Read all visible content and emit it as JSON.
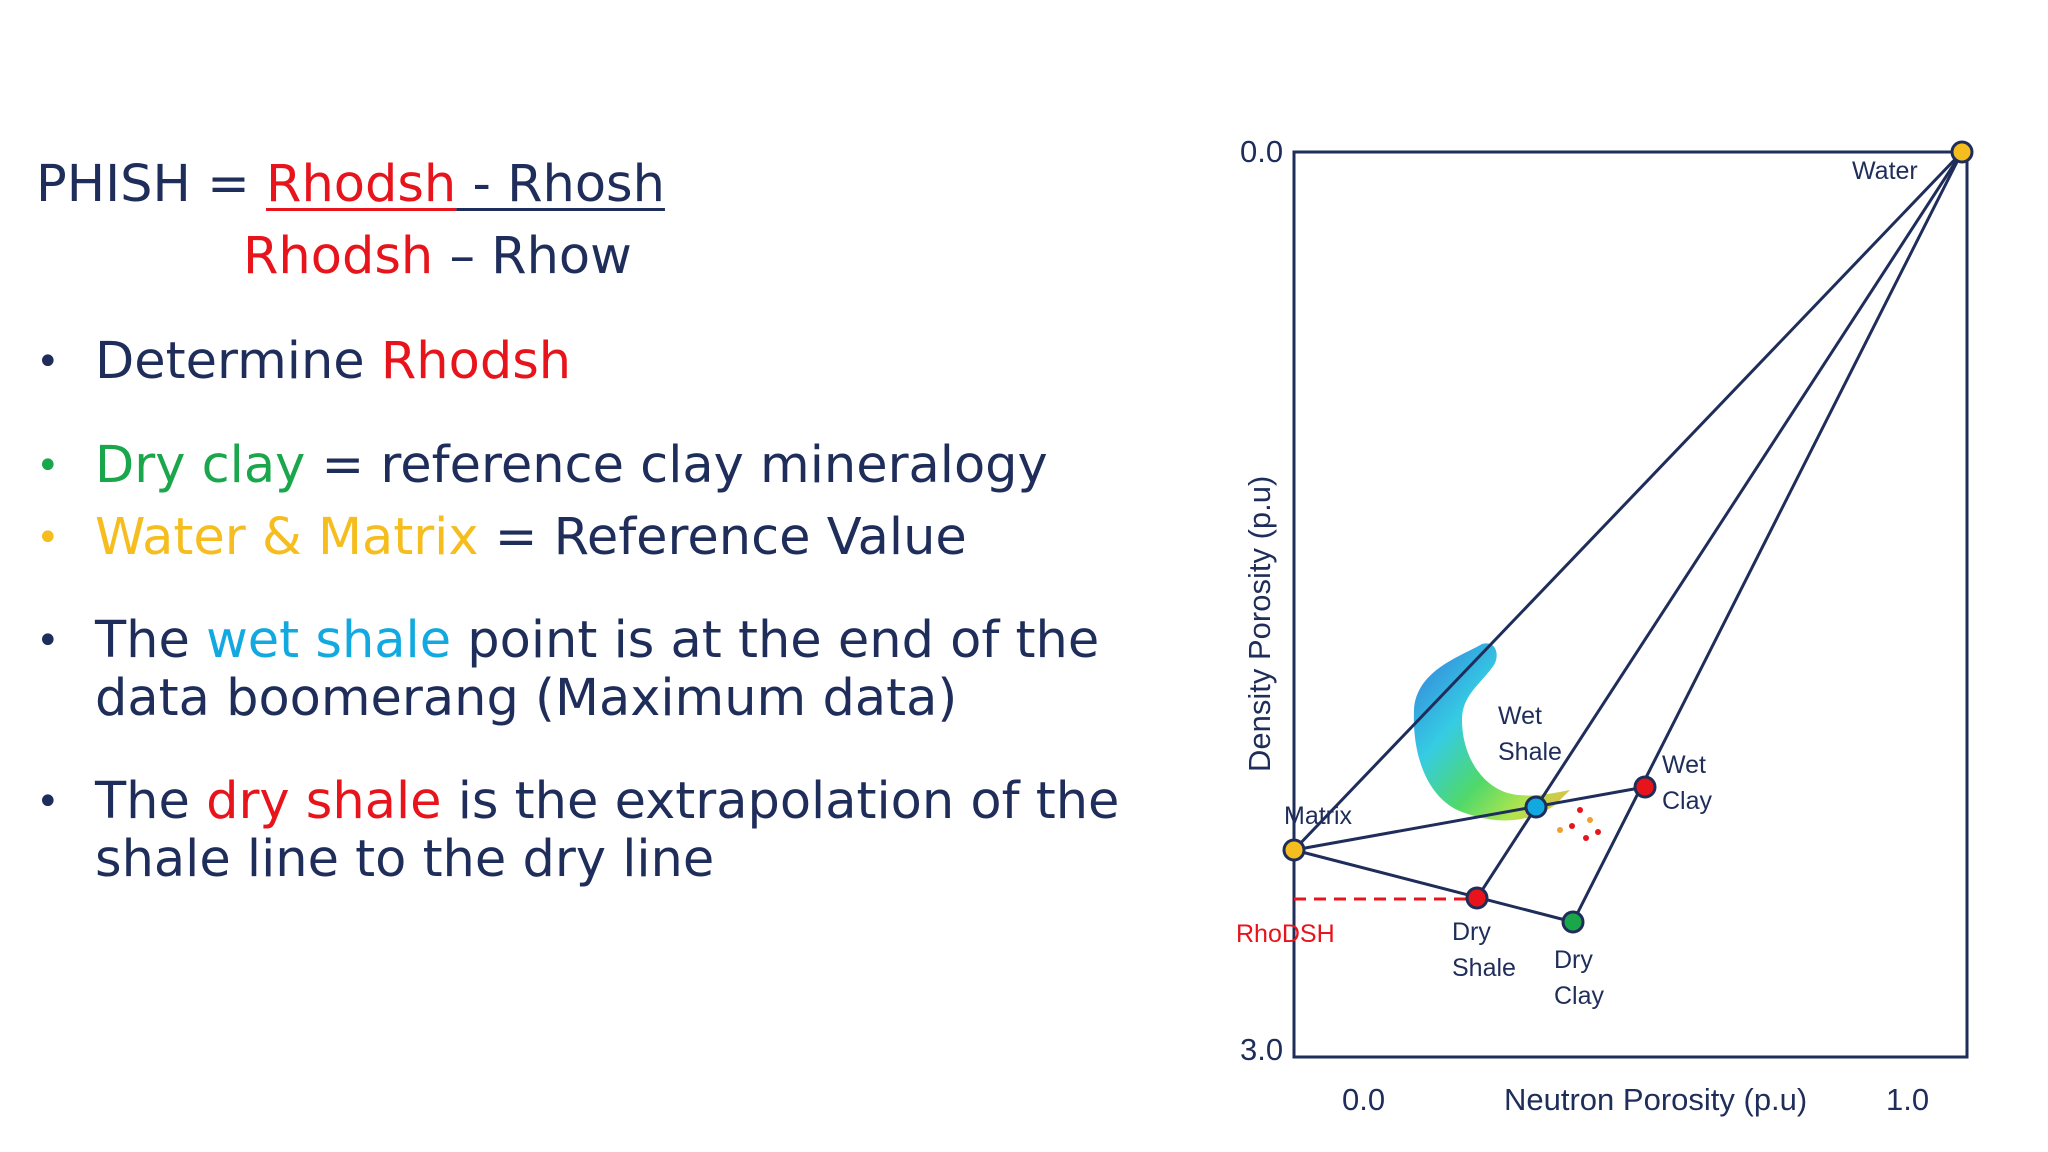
{
  "formula": {
    "lhs": "PHISH = ",
    "num_a": "Rhodsh",
    "num_b": " - Rhosh",
    "den_a": "Rhodsh",
    "den_b": " – Rhow"
  },
  "bullets": [
    {
      "dot": "•",
      "parts": [
        {
          "text": "Determine ",
          "color": "navy"
        },
        {
          "text": "Rhodsh",
          "color": "red"
        }
      ]
    },
    {
      "dot": "•",
      "dot_color": "green",
      "parts": [
        {
          "text": "Dry clay",
          "color": "green"
        },
        {
          "text": " = reference clay mineralogy",
          "color": "navy"
        }
      ]
    },
    {
      "dot": "•",
      "dot_color": "yellow",
      "parts": [
        {
          "text": "Water & Matrix",
          "color": "yellow"
        },
        {
          "text": " = Reference Value",
          "color": "navy"
        }
      ]
    },
    {
      "dot": "•",
      "parts": [
        {
          "text": "The ",
          "color": "navy"
        },
        {
          "text": "wet shale",
          "color": "blue"
        },
        {
          "text": " point is at the end of the data boomerang (Maximum data)",
          "color": "navy"
        }
      ]
    },
    {
      "dot": "•",
      "parts": [
        {
          "text": "The ",
          "color": "navy"
        },
        {
          "text": "dry shale",
          "color": "red"
        },
        {
          "text": " is the extrapolation of the shale line to the dry line",
          "color": "navy"
        }
      ]
    }
  ],
  "diagram": {
    "y_top_tick": "0.0",
    "y_bottom_tick": "3.0",
    "x_left_tick": "0.0",
    "x_right_tick": "1.0",
    "y_label": "Density Porosity (p.u)",
    "x_label": "Neutron Porosity (p.u)",
    "points": {
      "water": "Water",
      "matrix": "Matrix",
      "wet_shale_1": "Wet",
      "wet_shale_2": "Shale",
      "wet_clay_1": "Wet",
      "wet_clay_2": "Clay",
      "dry_shale_1": "Dry",
      "dry_shale_2": "Shale",
      "dry_clay_1": "Dry",
      "dry_clay_2": "Clay",
      "rhodsh": "RhoDSH"
    }
  },
  "colors": {
    "navy": "#1f2d5a",
    "red": "#e8141b",
    "green": "#1aa64b",
    "yellow": "#f5bd1e",
    "blue": "#12a9e0"
  }
}
